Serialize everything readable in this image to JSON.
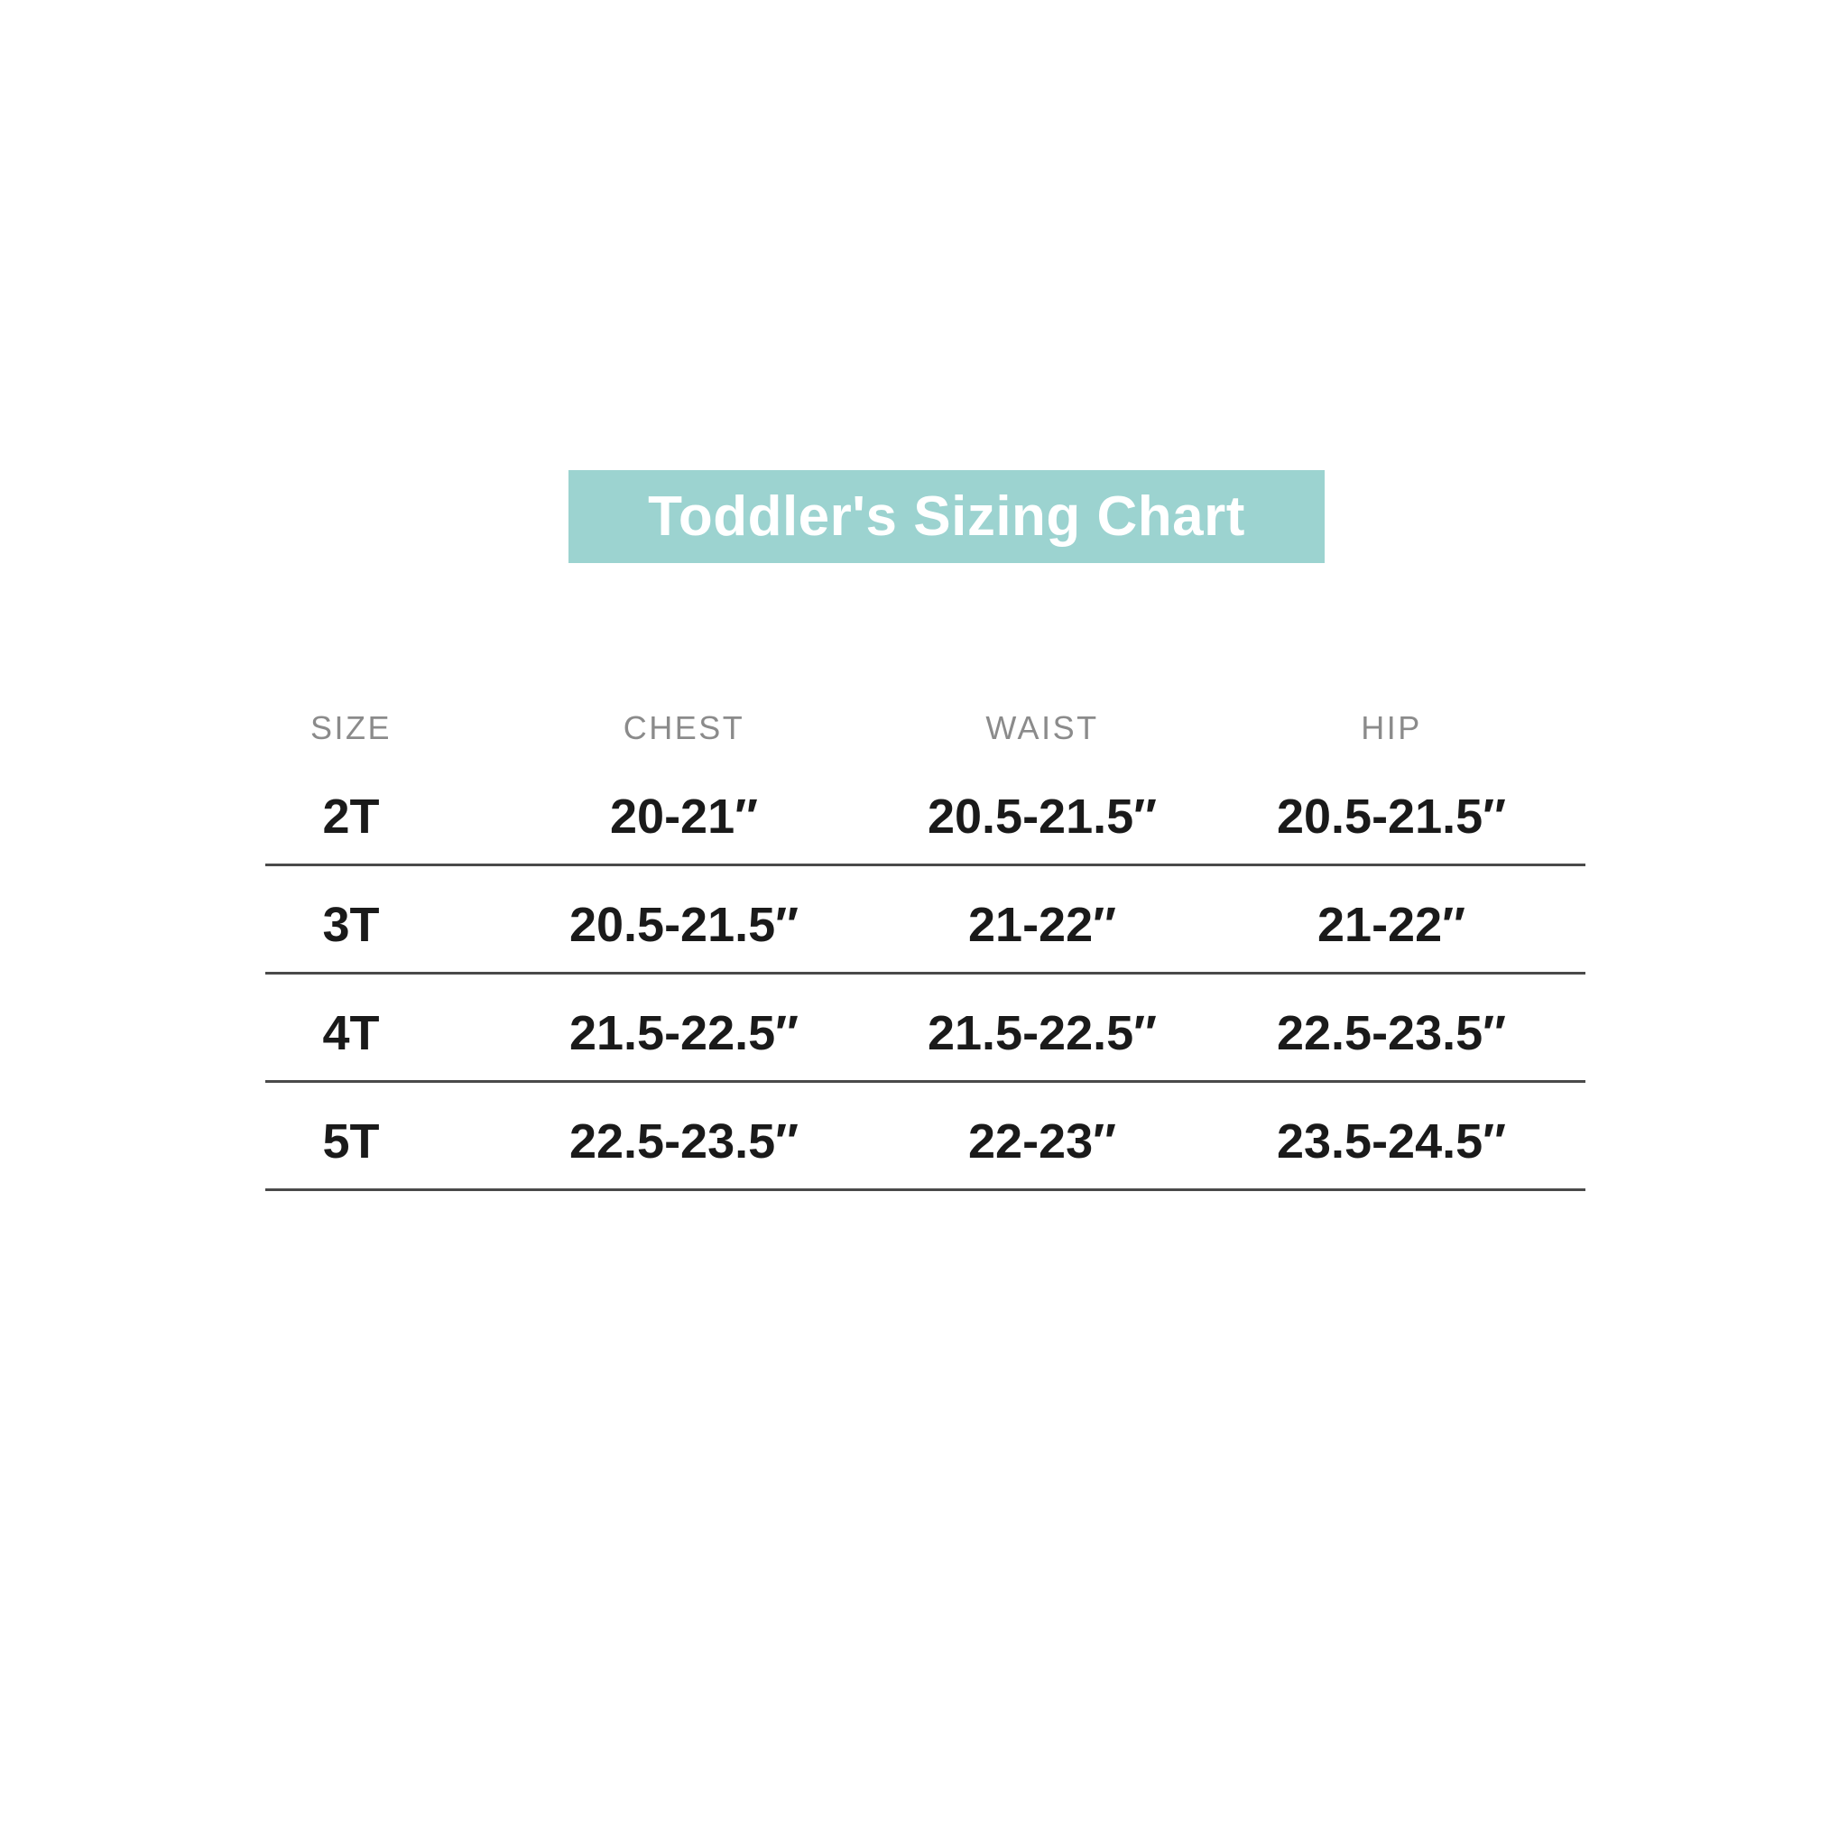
{
  "title": "Toddler's Sizing Chart",
  "theme": {
    "banner_bg": "#9cd3d0",
    "banner_text": "#ffffff",
    "header_text": "#8b8b8b",
    "cell_text": "#1a1a1a",
    "divider": "#4a4a4a",
    "page_bg": "#ffffff"
  },
  "chart_data": {
    "type": "table",
    "title": "Toddler's Sizing Chart",
    "columns": [
      "SIZE",
      "CHEST",
      "WAIST",
      "HIP"
    ],
    "rows": [
      [
        "2T",
        "20-21″",
        "20.5-21.5″",
        "20.5-21.5″"
      ],
      [
        "3T",
        "20.5-21.5″",
        "21-22″",
        "21-22″"
      ],
      [
        "4T",
        "21.5-22.5″",
        "21.5-22.5″",
        "22.5-23.5″"
      ],
      [
        "5T",
        "22.5-23.5″",
        "22-23″",
        "23.5-24.5″"
      ]
    ],
    "units": "inches",
    "layout": {
      "grid": "horizontal-dividers-only",
      "header_style": "gray-uppercase",
      "banner_color": "#9cd3d0"
    }
  }
}
